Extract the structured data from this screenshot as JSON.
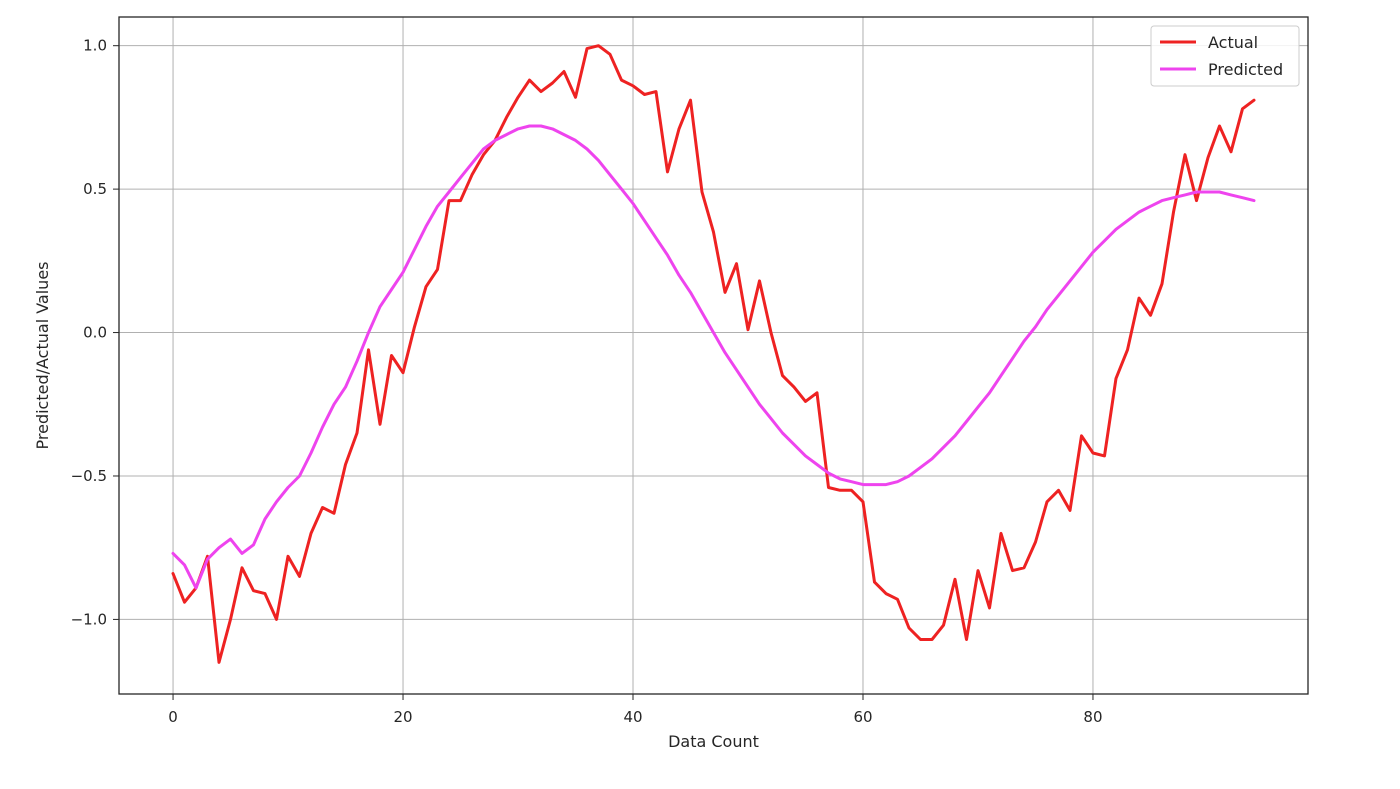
{
  "chart_data": {
    "type": "line",
    "title": "",
    "xlabel": "Data Count",
    "ylabel": "Predicted/Actual Values",
    "xlim": [
      -4.7,
      98.7
    ],
    "ylim": [
      -1.26,
      1.1
    ],
    "xticks": [
      0,
      20,
      40,
      60,
      80
    ],
    "xtick_labels": [
      "0",
      "20",
      "40",
      "60",
      "80"
    ],
    "yticks": [
      -1.0,
      -0.5,
      0.0,
      0.5,
      1.0
    ],
    "ytick_labels": [
      "−1.0",
      "−0.5",
      "0.0",
      "0.5",
      "1.0"
    ],
    "grid": true,
    "legend_position": "top-right",
    "series": [
      {
        "name": "Actual",
        "color": "#ee2222",
        "x": [
          0,
          1,
          2,
          3,
          4,
          5,
          6,
          7,
          8,
          9,
          10,
          11,
          12,
          13,
          14,
          15,
          16,
          17,
          18,
          19,
          20,
          21,
          22,
          23,
          24,
          25,
          26,
          27,
          28,
          29,
          30,
          31,
          32,
          33,
          34,
          35,
          36,
          37,
          38,
          39,
          40,
          41,
          42,
          43,
          44,
          45,
          46,
          47,
          48,
          49,
          50,
          51,
          52,
          53,
          54,
          55,
          56,
          57,
          58,
          59,
          60,
          61,
          62,
          63,
          64,
          65,
          66,
          67,
          68,
          69,
          70,
          71,
          72,
          73,
          74,
          75,
          76,
          77,
          78,
          79,
          80,
          81,
          82,
          83,
          84,
          85,
          86,
          87,
          88,
          89,
          90,
          91,
          92,
          93,
          94
        ],
        "values": [
          -0.84,
          -0.94,
          -0.89,
          -0.78,
          -1.15,
          -1.0,
          -0.82,
          -0.9,
          -0.91,
          -1.0,
          -0.78,
          -0.85,
          -0.7,
          -0.61,
          -0.63,
          -0.46,
          -0.35,
          -0.06,
          -0.32,
          -0.08,
          -0.14,
          0.02,
          0.16,
          0.22,
          0.46,
          0.46,
          0.55,
          0.62,
          0.67,
          0.75,
          0.82,
          0.88,
          0.84,
          0.87,
          0.91,
          0.82,
          0.99,
          1.0,
          0.97,
          0.88,
          0.86,
          0.83,
          0.84,
          0.56,
          0.71,
          0.81,
          0.49,
          0.35,
          0.14,
          0.24,
          0.01,
          0.18,
          0.0,
          -0.15,
          -0.19,
          -0.24,
          -0.21,
          -0.54,
          -0.55,
          -0.55,
          -0.59,
          -0.87,
          -0.91,
          -0.93,
          -1.03,
          -1.07,
          -1.07,
          -1.02,
          -0.86,
          -1.07,
          -0.83,
          -0.96,
          -0.7,
          -0.83,
          -0.82,
          -0.73,
          -0.59,
          -0.55,
          -0.62,
          -0.36,
          -0.42,
          -0.43,
          -0.16,
          -0.06,
          0.12,
          0.06,
          0.17,
          0.42,
          0.62,
          0.46,
          0.61,
          0.72,
          0.63,
          0.78,
          0.81
        ]
      },
      {
        "name": "Predicted",
        "color": "#ee44ee",
        "x": [
          0,
          1,
          2,
          3,
          4,
          5,
          6,
          7,
          8,
          9,
          10,
          11,
          12,
          13,
          14,
          15,
          16,
          17,
          18,
          19,
          20,
          21,
          22,
          23,
          24,
          25,
          26,
          27,
          28,
          29,
          30,
          31,
          32,
          33,
          34,
          35,
          36,
          37,
          38,
          39,
          40,
          41,
          42,
          43,
          44,
          45,
          46,
          47,
          48,
          49,
          50,
          51,
          52,
          53,
          54,
          55,
          56,
          57,
          58,
          59,
          60,
          61,
          62,
          63,
          64,
          65,
          66,
          67,
          68,
          69,
          70,
          71,
          72,
          73,
          74,
          75,
          76,
          77,
          78,
          79,
          80,
          81,
          82,
          83,
          84,
          85,
          86,
          87,
          88,
          89,
          90,
          91,
          92,
          93,
          94
        ],
        "values": [
          -0.77,
          -0.81,
          -0.89,
          -0.79,
          -0.75,
          -0.72,
          -0.77,
          -0.74,
          -0.65,
          -0.59,
          -0.54,
          -0.5,
          -0.42,
          -0.33,
          -0.25,
          -0.19,
          -0.1,
          0.0,
          0.09,
          0.15,
          0.21,
          0.29,
          0.37,
          0.44,
          0.49,
          0.54,
          0.59,
          0.64,
          0.67,
          0.69,
          0.71,
          0.72,
          0.72,
          0.71,
          0.69,
          0.67,
          0.64,
          0.6,
          0.55,
          0.5,
          0.45,
          0.39,
          0.33,
          0.27,
          0.2,
          0.14,
          0.07,
          0.0,
          -0.07,
          -0.13,
          -0.19,
          -0.25,
          -0.3,
          -0.35,
          -0.39,
          -0.43,
          -0.46,
          -0.49,
          -0.51,
          -0.52,
          -0.53,
          -0.53,
          -0.53,
          -0.52,
          -0.5,
          -0.47,
          -0.44,
          -0.4,
          -0.36,
          -0.31,
          -0.26,
          -0.21,
          -0.15,
          -0.09,
          -0.03,
          0.02,
          0.08,
          0.13,
          0.18,
          0.23,
          0.28,
          0.32,
          0.36,
          0.39,
          0.42,
          0.44,
          0.46,
          0.47,
          0.48,
          0.49,
          0.49,
          0.49,
          0.48,
          0.47,
          0.46
        ]
      }
    ]
  }
}
